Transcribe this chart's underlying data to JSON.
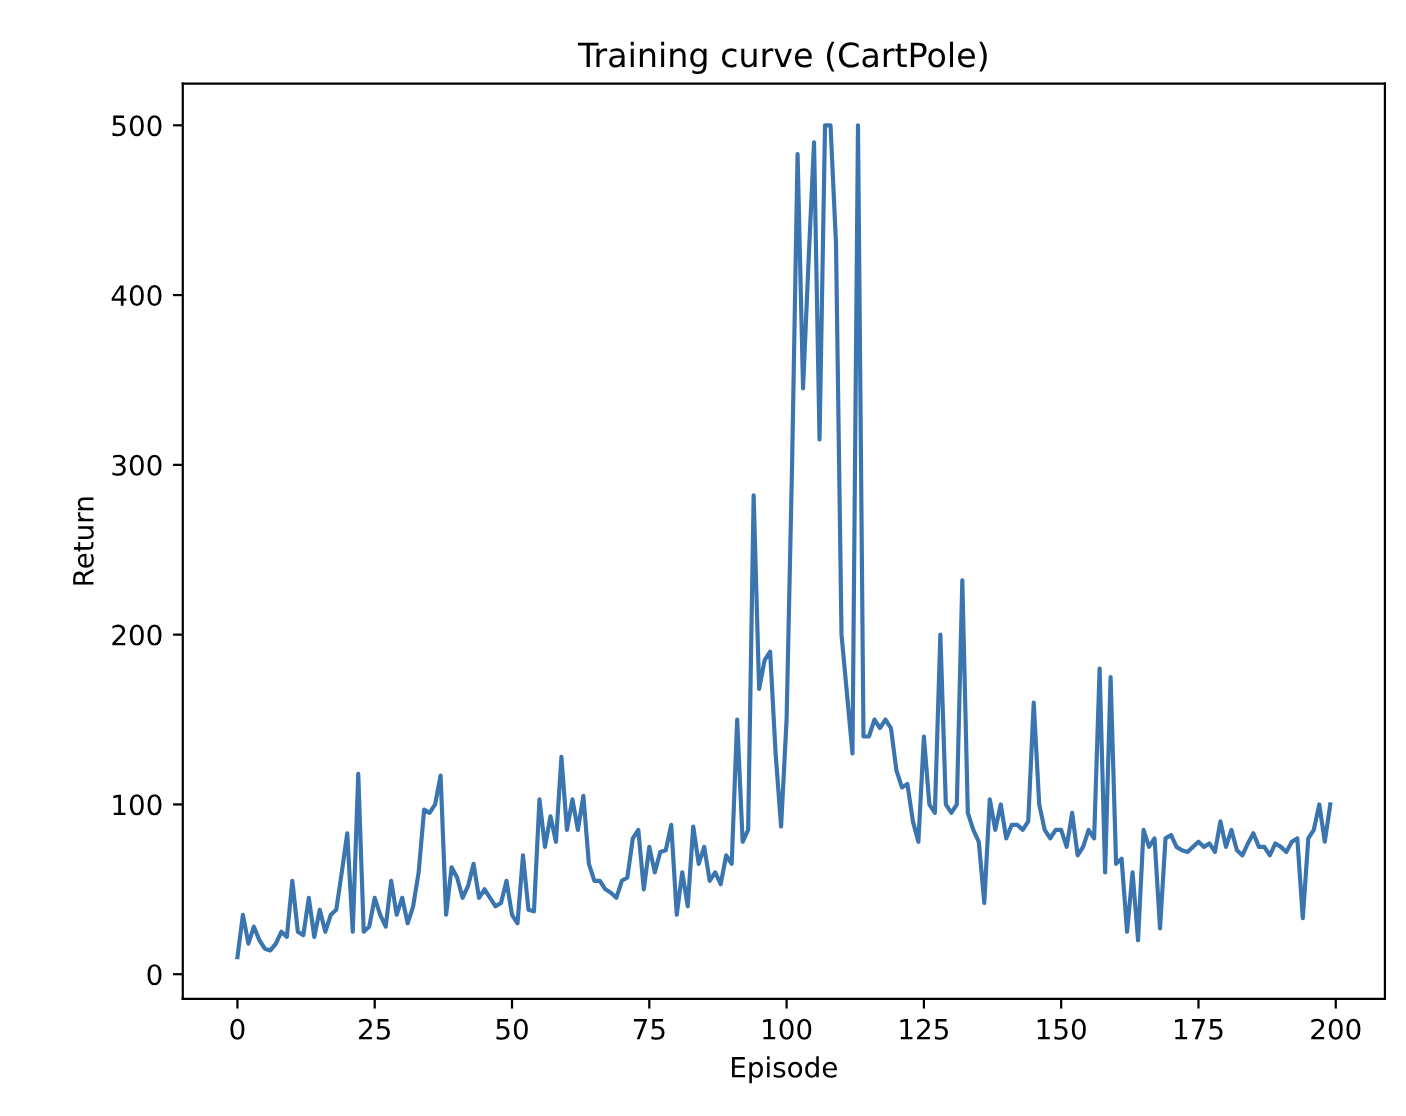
{
  "chart_data": {
    "type": "line",
    "title": "Training curve (CartPole)",
    "xlabel": "Episode",
    "ylabel": "Return",
    "xlim": [
      -9.95,
      208.95
    ],
    "ylim": [
      -14.5,
      524.5
    ],
    "xticks": [
      0,
      25,
      50,
      75,
      100,
      125,
      150,
      175,
      200
    ],
    "yticks": [
      0,
      100,
      200,
      300,
      400,
      500
    ],
    "grid": false,
    "legend": false,
    "series": [
      {
        "color": "#3b75af",
        "x": [
          0,
          1,
          2,
          3,
          4,
          5,
          6,
          7,
          8,
          9,
          10,
          11,
          12,
          13,
          14,
          15,
          16,
          17,
          18,
          19,
          20,
          21,
          22,
          23,
          24,
          25,
          26,
          27,
          28,
          29,
          30,
          31,
          32,
          33,
          34,
          35,
          36,
          37,
          38,
          39,
          40,
          41,
          42,
          43,
          44,
          45,
          46,
          47,
          48,
          49,
          50,
          51,
          52,
          53,
          54,
          55,
          56,
          57,
          58,
          59,
          60,
          61,
          62,
          63,
          64,
          65,
          66,
          67,
          68,
          69,
          70,
          71,
          72,
          73,
          74,
          75,
          76,
          77,
          78,
          79,
          80,
          81,
          82,
          83,
          84,
          85,
          86,
          87,
          88,
          89,
          90,
          91,
          92,
          93,
          94,
          95,
          96,
          97,
          98,
          99,
          100,
          101,
          102,
          103,
          104,
          105,
          106,
          107,
          108,
          109,
          110,
          111,
          112,
          113,
          114,
          115,
          116,
          117,
          118,
          119,
          120,
          121,
          122,
          123,
          124,
          125,
          126,
          127,
          128,
          129,
          130,
          131,
          132,
          133,
          134,
          135,
          136,
          137,
          138,
          139,
          140,
          141,
          142,
          143,
          144,
          145,
          146,
          147,
          148,
          149,
          150,
          151,
          152,
          153,
          154,
          155,
          156,
          157,
          158,
          159,
          160,
          161,
          162,
          163,
          164,
          165,
          166,
          167,
          168,
          169,
          170,
          171,
          172,
          173,
          174,
          175,
          176,
          177,
          178,
          179,
          180,
          181,
          182,
          183,
          184,
          185,
          186,
          187,
          188,
          189,
          190,
          191,
          192,
          193,
          194,
          195,
          196,
          197,
          198,
          199
        ],
        "values": [
          10,
          35,
          18,
          28,
          20,
          15,
          14,
          18,
          25,
          22,
          55,
          25,
          23,
          45,
          22,
          38,
          25,
          35,
          38,
          60,
          83,
          25,
          118,
          25,
          28,
          45,
          35,
          28,
          55,
          35,
          45,
          30,
          40,
          60,
          97,
          95,
          100,
          117,
          35,
          63,
          57,
          45,
          52,
          65,
          45,
          50,
          45,
          40,
          42,
          55,
          35,
          30,
          70,
          38,
          37,
          103,
          75,
          93,
          78,
          128,
          85,
          103,
          85,
          105,
          65,
          55,
          55,
          50,
          48,
          45,
          55,
          57,
          80,
          85,
          50,
          75,
          60,
          72,
          73,
          88,
          35,
          60,
          40,
          87,
          65,
          75,
          55,
          60,
          53,
          70,
          65,
          150,
          78,
          85,
          282,
          168,
          185,
          190,
          130,
          87,
          150,
          300,
          483,
          345,
          420,
          490,
          315,
          500,
          500,
          430,
          200,
          165,
          130,
          500,
          140,
          140,
          150,
          145,
          150,
          145,
          120,
          110,
          112,
          90,
          78,
          140,
          100,
          95,
          200,
          100,
          95,
          100,
          232,
          95,
          85,
          78,
          42,
          103,
          85,
          100,
          80,
          88,
          88,
          85,
          90,
          160,
          100,
          85,
          80,
          85,
          85,
          75,
          95,
          70,
          75,
          85,
          80,
          180,
          60,
          175,
          65,
          68,
          25,
          60,
          20,
          85,
          75,
          80,
          27,
          80,
          82,
          75,
          73,
          72,
          75,
          78,
          75,
          77,
          72,
          90,
          75,
          85,
          73,
          70,
          77,
          83,
          75,
          75,
          70,
          77,
          75,
          72,
          78,
          80,
          33,
          80,
          85,
          100,
          78,
          100
        ]
      }
    ]
  }
}
